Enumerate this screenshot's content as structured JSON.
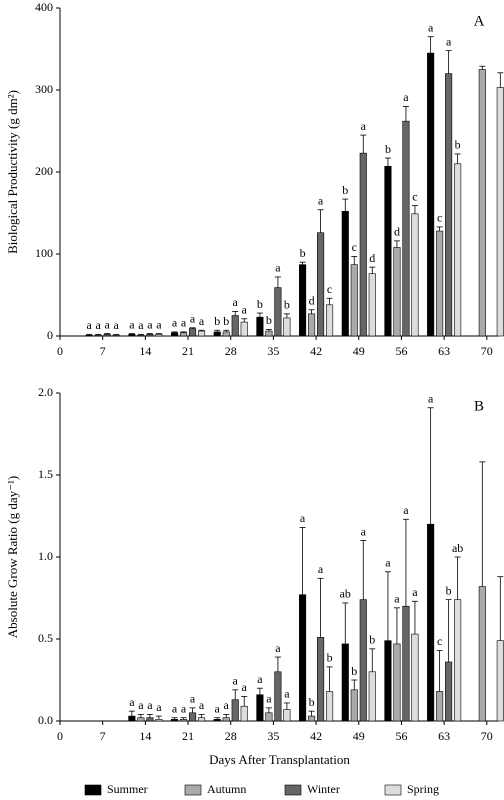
{
  "chart_data": [
    {
      "type": "bar",
      "label": "A",
      "ylabel": "Biological Productivity (g dm²)",
      "x": [
        7,
        14,
        21,
        28,
        35,
        42,
        49,
        56,
        63,
        70
      ],
      "xlim": [
        0,
        72
      ],
      "xticks": [
        0,
        7,
        14,
        21,
        28,
        35,
        42,
        49,
        56,
        63,
        70
      ],
      "ylim": [
        0,
        400
      ],
      "yticks": [
        0,
        100,
        200,
        300,
        400
      ],
      "series": [
        {
          "color": "#000000",
          "values": [
            1,
            2,
            4,
            5,
            23,
            87,
            152,
            207,
            345,
            null
          ],
          "errors": [
            1,
            1,
            1,
            2,
            5,
            3,
            15,
            10,
            20,
            null
          ],
          "letters": [
            "a",
            "a",
            "a",
            "b",
            "b",
            "b",
            "b",
            "b",
            "a",
            null
          ]
        },
        {
          "color": "#aaaaaa",
          "values": [
            1,
            1,
            4,
            5,
            6,
            27,
            87,
            108,
            128,
            325
          ],
          "errors": [
            1,
            1,
            1,
            2,
            2,
            5,
            10,
            8,
            5,
            4
          ],
          "letters": [
            "a",
            "a",
            "a",
            "b",
            "b",
            "d",
            "c",
            "d",
            "c",
            null
          ]
        },
        {
          "color": "#666666",
          "values": [
            2,
            2,
            9,
            25,
            59,
            126,
            223,
            262,
            320,
            null
          ],
          "errors": [
            1,
            1,
            1,
            5,
            13,
            28,
            22,
            18,
            28,
            null
          ],
          "letters": [
            "a",
            "a",
            "a",
            "a",
            "a",
            "a",
            "a",
            "a",
            "a",
            null
          ]
        },
        {
          "color": "#dddddd",
          "values": [
            1,
            2,
            6,
            17,
            22,
            38,
            76,
            149,
            210,
            303
          ],
          "errors": [
            1,
            1,
            1,
            4,
            5,
            8,
            8,
            10,
            12,
            18
          ],
          "letters": [
            "a",
            "a",
            "a",
            "a",
            "b",
            "c",
            "d",
            "c",
            "b",
            null
          ]
        }
      ]
    },
    {
      "type": "bar",
      "label": "B",
      "ylabel": "Absolute Grow Ratio (g day⁻¹)",
      "xlabel": "Days After Transplantation",
      "x": [
        7,
        14,
        21,
        28,
        35,
        42,
        49,
        56,
        63,
        70
      ],
      "xlim": [
        0,
        72
      ],
      "xticks": [
        0,
        7,
        14,
        21,
        28,
        35,
        42,
        49,
        56,
        63,
        70
      ],
      "ylim": [
        0,
        2
      ],
      "yticks": [
        {
          "value": 0,
          "label": "0.0"
        },
        0.5,
        {
          "value": 1,
          "label": "1.0"
        },
        1.5,
        {
          "value": 2,
          "label": "2.0"
        }
      ],
      "series": [
        {
          "name": "Summer",
          "color": "#000000",
          "values": [
            null,
            0.03,
            0.01,
            0.01,
            0.16,
            0.77,
            0.47,
            0.49,
            1.2,
            null
          ],
          "errors": [
            null,
            0.03,
            0.01,
            0.01,
            0.04,
            0.41,
            0.25,
            0.42,
            0.71,
            null
          ],
          "letters": [
            null,
            "a",
            "a",
            "a",
            "a",
            "a",
            "ab",
            "a",
            "a",
            null
          ]
        },
        {
          "name": "Autumn",
          "color": "#aaaaaa",
          "values": [
            null,
            0.02,
            0.01,
            0.02,
            0.05,
            0.03,
            0.19,
            0.47,
            0.18,
            0.82
          ],
          "errors": [
            null,
            0.02,
            0.01,
            0.02,
            0.03,
            0.03,
            0.06,
            0.22,
            0.25,
            0.76
          ],
          "letters": [
            null,
            "a",
            "a",
            "a",
            "a",
            "b",
            "b",
            "a",
            "c",
            null
          ]
        },
        {
          "name": "Winter",
          "color": "#666666",
          "values": [
            null,
            0.02,
            0.05,
            0.13,
            0.3,
            0.51,
            0.74,
            0.7,
            0.36,
            null
          ],
          "errors": [
            null,
            0.02,
            0.03,
            0.06,
            0.09,
            0.36,
            0.36,
            0.53,
            0.38,
            null
          ],
          "letters": [
            null,
            "a",
            "a",
            "a",
            "a",
            "a",
            "a",
            "a",
            "b",
            null
          ]
        },
        {
          "name": "Spring",
          "color": "#dddddd",
          "values": [
            null,
            0.01,
            0.02,
            0.09,
            0.07,
            0.18,
            0.3,
            0.53,
            0.74,
            0.49
          ],
          "errors": [
            null,
            0.02,
            0.02,
            0.06,
            0.04,
            0.15,
            0.14,
            0.2,
            0.26,
            0.39
          ],
          "letters": [
            null,
            "a",
            "a",
            "a",
            "a",
            "b",
            "b",
            "a",
            "ab",
            null
          ]
        }
      ]
    }
  ]
}
